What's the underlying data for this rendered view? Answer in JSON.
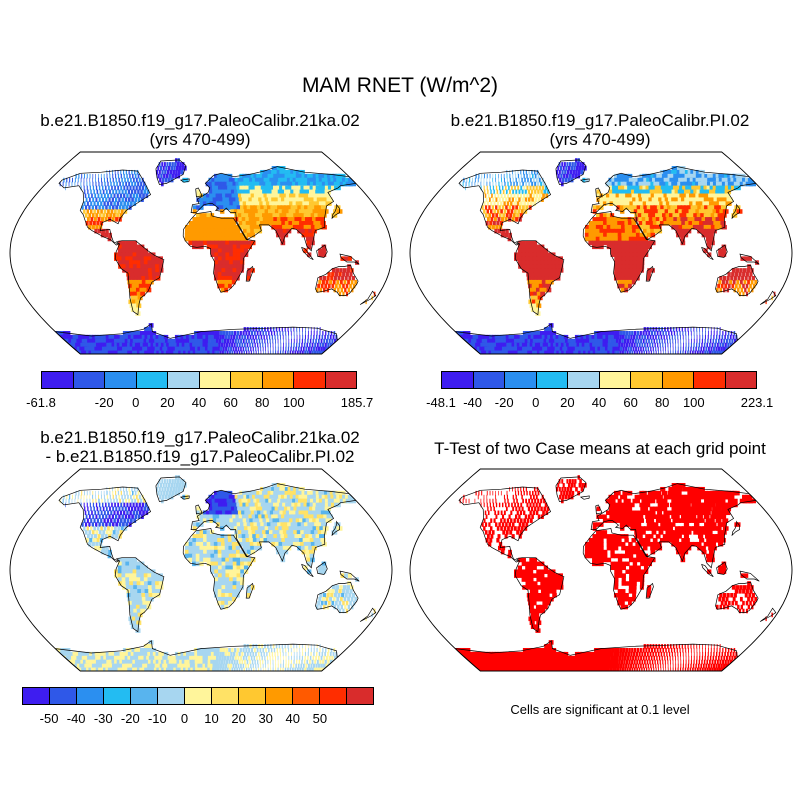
{
  "title": "MAM RNET (W/m^2)",
  "panels": [
    {
      "title_line1": "b.e21.B1850.f19_g17.PaleoCalibr.21ka.02",
      "title_line2": "(yrs 470-499)"
    },
    {
      "title_line1": "b.e21.B1850.f19_g17.PaleoCalibr.PI.02",
      "title_line2": "(yrs 470-499)"
    },
    {
      "title_line1": "b.e21.B1850.f19_g17.PaleoCalibr.21ka.02",
      "title_line2": "- b.e21.B1850.f19_g17.PaleoCalibr.PI.02"
    },
    {
      "title_line1": "T-Test of two Case means at each grid point"
    }
  ],
  "colorbars": [
    {
      "colors": [
        "#3e1df0",
        "#2f58e8",
        "#2b8ff0",
        "#23bcf2",
        "#a7d6f0",
        "#fff59b",
        "#ffc830",
        "#ff9a00",
        "#ff2d00",
        "#d92c2c"
      ],
      "labels": [
        {
          "i": 0,
          "t": "-61.8"
        },
        {
          "i": 2,
          "t": "-20"
        },
        {
          "i": 3,
          "t": "0"
        },
        {
          "i": 4,
          "t": "20"
        },
        {
          "i": 5,
          "t": "40"
        },
        {
          "i": 6,
          "t": "60"
        },
        {
          "i": 7,
          "t": "80"
        },
        {
          "i": 8,
          "t": "100"
        },
        {
          "i": 10,
          "t": "185.7"
        }
      ]
    },
    {
      "colors": [
        "#3e1df0",
        "#2f58e8",
        "#2b8ff0",
        "#23bcf2",
        "#a7d6f0",
        "#fff59b",
        "#ffc830",
        "#ff9a00",
        "#ff2d00",
        "#d92c2c"
      ],
      "labels": [
        {
          "i": 0,
          "t": "-48.1"
        },
        {
          "i": 1,
          "t": "-40"
        },
        {
          "i": 2,
          "t": "-20"
        },
        {
          "i": 3,
          "t": "0"
        },
        {
          "i": 4,
          "t": "20"
        },
        {
          "i": 5,
          "t": "40"
        },
        {
          "i": 6,
          "t": "60"
        },
        {
          "i": 7,
          "t": "80"
        },
        {
          "i": 8,
          "t": "100"
        },
        {
          "i": 10,
          "t": "223.1"
        }
      ]
    },
    {
      "colors": [
        "#3e1df0",
        "#2f58e8",
        "#2b8ff0",
        "#23bcf2",
        "#58b4ee",
        "#a7d6f0",
        "#fff59b",
        "#ffe266",
        "#ffc830",
        "#ff9a00",
        "#ff5a00",
        "#ff2d00",
        "#d92c2c"
      ],
      "labels": [
        {
          "i": 1,
          "t": "-50"
        },
        {
          "i": 2,
          "t": "-40"
        },
        {
          "i": 3,
          "t": "-30"
        },
        {
          "i": 4,
          "t": "-20"
        },
        {
          "i": 5,
          "t": "-10"
        },
        {
          "i": 6,
          "t": "0"
        },
        {
          "i": 7,
          "t": "10"
        },
        {
          "i": 8,
          "t": "20"
        },
        {
          "i": 9,
          "t": "30"
        },
        {
          "i": 10,
          "t": "40"
        },
        {
          "i": 11,
          "t": "50"
        }
      ]
    }
  ],
  "significance_note": "Cells are significant at 0.1 level",
  "colors": {
    "significant": "#ff0000",
    "land_outline": "#000000",
    "ocean": "#ffffff"
  }
}
